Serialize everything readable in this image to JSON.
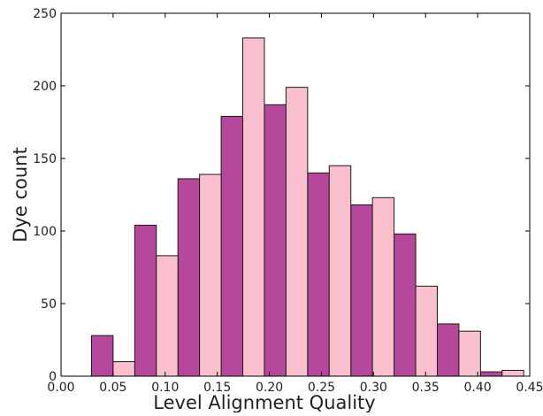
{
  "chart_data": {
    "type": "bar",
    "title": "",
    "xlabel": "Level Alignment Quality",
    "ylabel": "Dye count",
    "xlim": [
      0.0,
      0.45
    ],
    "ylim": [
      0,
      250
    ],
    "bin_width": 0.0415,
    "x": [
      0.05,
      0.0915,
      0.133,
      0.1745,
      0.216,
      0.2575,
      0.299,
      0.3405,
      0.382,
      0.4235
    ],
    "x_ticks": [
      "0.00",
      "0.05",
      "0.10",
      "0.15",
      "0.20",
      "0.25",
      "0.30",
      "0.35",
      "0.40",
      "0.45"
    ],
    "y_ticks": [
      "0",
      "50",
      "100",
      "150",
      "200",
      "250"
    ],
    "grid": false,
    "legend": "none",
    "series": [
      {
        "values": [
          28,
          104,
          136,
          179,
          187,
          140,
          118,
          98,
          36,
          3
        ],
        "color": "#b5489a"
      },
      {
        "values": [
          10,
          83,
          139,
          233,
          199,
          145,
          123,
          62,
          31,
          4
        ],
        "color": "#f9bfcc"
      }
    ]
  }
}
